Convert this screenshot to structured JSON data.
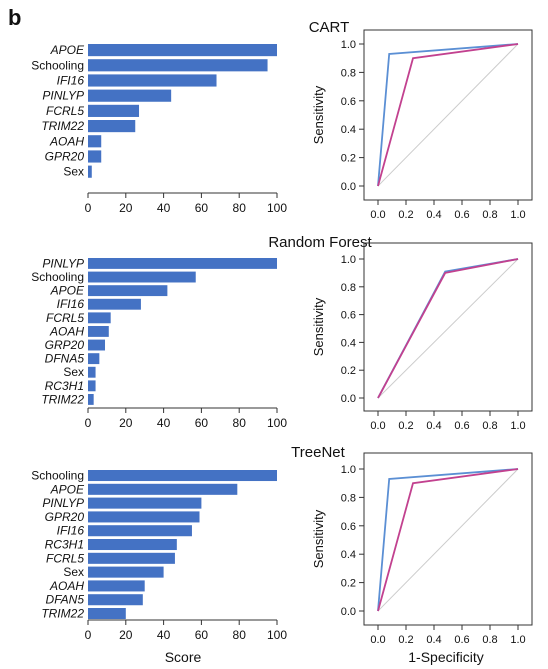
{
  "panel_letter": "b",
  "colors": {
    "bar": "#4472c4",
    "roc_blue": "#5b8fd4",
    "roc_magenta": "#c2418f",
    "diagonal": "#cccccc",
    "axis": "#333333"
  },
  "shared": {
    "bar_xlabel": "Score",
    "roc_xlabel": "1-Specificity",
    "roc_ylabel": "Sensitivity"
  },
  "chart_data": [
    {
      "type": "bar",
      "title": "CART",
      "categories": [
        "APOE",
        "Schooling",
        "IFI16",
        "PINLYP",
        "FCRL5",
        "TRIM22",
        "AOAH",
        "GPR20",
        "Sex"
      ],
      "italic": [
        true,
        false,
        true,
        true,
        true,
        true,
        true,
        true,
        false
      ],
      "values": [
        100,
        95,
        68,
        44,
        27,
        25,
        7,
        7,
        2
      ],
      "xlim": [
        0,
        100
      ],
      "xticks": [
        "0",
        "20",
        "40",
        "60",
        "80",
        "100"
      ],
      "xlabel": ""
    },
    {
      "type": "line",
      "title": "",
      "xlabel": "",
      "ylabel": "Sensitivity",
      "xlim": [
        0,
        1
      ],
      "ylim": [
        0,
        1
      ],
      "xticks": [
        "0.0",
        "0.2",
        "0.4",
        "0.6",
        "0.8",
        "1.0"
      ],
      "yticks": [
        "0.0",
        "0.2",
        "0.4",
        "0.6",
        "0.8",
        "1.0"
      ],
      "series": [
        {
          "color": "blue",
          "x": [
            0,
            0.08,
            1
          ],
          "y": [
            0,
            0.93,
            1
          ]
        },
        {
          "color": "magenta",
          "x": [
            0,
            0.25,
            1
          ],
          "y": [
            0,
            0.9,
            1
          ]
        }
      ]
    },
    {
      "type": "bar",
      "title": "Random Forest",
      "categories": [
        "PINLYP",
        "Schooling",
        "APOE",
        "IFI16",
        "FCRL5",
        "AOAH",
        "GRP20",
        "DFNA5",
        "Sex",
        "RC3H1",
        "TRIM22"
      ],
      "italic": [
        true,
        false,
        true,
        true,
        true,
        true,
        true,
        true,
        false,
        true,
        true
      ],
      "values": [
        100,
        57,
        42,
        28,
        12,
        11,
        9,
        6,
        4,
        4,
        3
      ],
      "xlim": [
        0,
        100
      ],
      "xticks": [
        "0",
        "20",
        "40",
        "60",
        "80",
        "100"
      ],
      "xlabel": ""
    },
    {
      "type": "line",
      "title": "",
      "xlabel": "",
      "ylabel": "Sensitivity",
      "xlim": [
        0,
        1
      ],
      "ylim": [
        0,
        1
      ],
      "xticks": [
        "0.0",
        "0.2",
        "0.4",
        "0.6",
        "0.8",
        "1.0"
      ],
      "yticks": [
        "0.0",
        "0.2",
        "0.4",
        "0.6",
        "0.8",
        "1.0"
      ],
      "series": [
        {
          "color": "blue",
          "x": [
            0,
            0.48,
            1
          ],
          "y": [
            0,
            0.91,
            1
          ]
        },
        {
          "color": "magenta",
          "x": [
            0,
            0.48,
            1
          ],
          "y": [
            0,
            0.9,
            1
          ]
        }
      ]
    },
    {
      "type": "bar",
      "title": "TreeNet",
      "categories": [
        "Schooling",
        "APOE",
        "PINLYP",
        "GPR20",
        "IFI16",
        "RC3H1",
        "FCRL5",
        "Sex",
        "AOAH",
        "DFAN5",
        "TRIM22"
      ],
      "italic": [
        false,
        true,
        true,
        true,
        true,
        true,
        true,
        false,
        true,
        true,
        true
      ],
      "values": [
        100,
        79,
        60,
        59,
        55,
        47,
        46,
        40,
        30,
        29,
        20
      ],
      "xlim": [
        0,
        100
      ],
      "xticks": [
        "0",
        "20",
        "40",
        "60",
        "80",
        "100"
      ],
      "xlabel": "Score"
    },
    {
      "type": "line",
      "title": "",
      "xlabel": "1-Specificity",
      "ylabel": "Sensitivity",
      "xlim": [
        0,
        1
      ],
      "ylim": [
        0,
        1
      ],
      "xticks": [
        "0.0",
        "0.2",
        "0.4",
        "0.6",
        "0.8",
        "1.0"
      ],
      "yticks": [
        "0.0",
        "0.2",
        "0.4",
        "0.6",
        "0.8",
        "1.0"
      ],
      "series": [
        {
          "color": "blue",
          "x": [
            0,
            0.08,
            1
          ],
          "y": [
            0,
            0.93,
            1
          ]
        },
        {
          "color": "magenta",
          "x": [
            0,
            0.25,
            1
          ],
          "y": [
            0,
            0.9,
            1
          ]
        }
      ]
    }
  ]
}
